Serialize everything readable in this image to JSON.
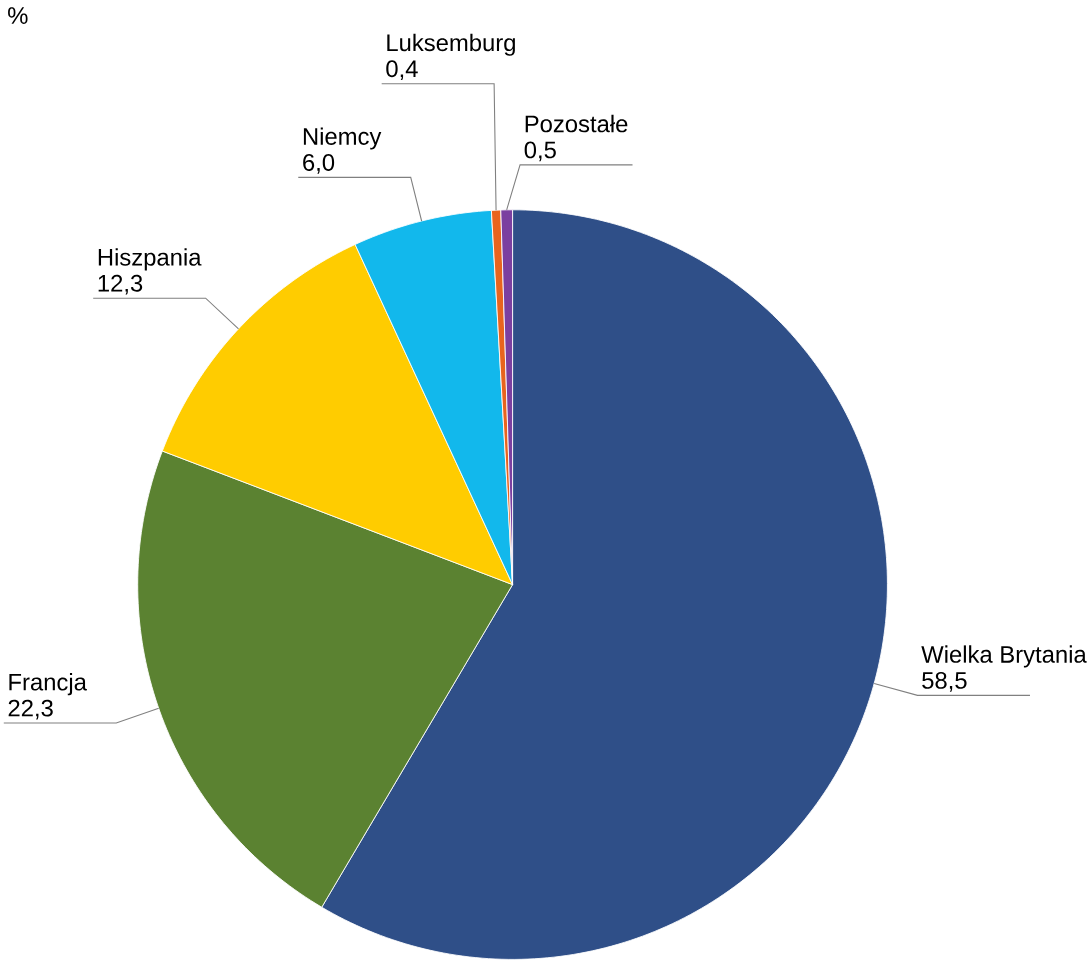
{
  "chart_data": {
    "type": "pie",
    "title": "%",
    "categories": [
      "Wielka Brytania",
      "Francja",
      "Hiszpania",
      "Niemcy",
      "Luksemburg",
      "Pozostałe"
    ],
    "values": [
      58.5,
      22.3,
      12.3,
      6.0,
      0.4,
      0.5
    ],
    "value_labels": [
      "58,5",
      "22,3",
      "12,3",
      "6,0",
      "0,4",
      "0,5"
    ],
    "colors": [
      "#2f4f88",
      "#5b8231",
      "#ffcc00",
      "#12b8ec",
      "#e8641e",
      "#7b3fa0"
    ]
  }
}
